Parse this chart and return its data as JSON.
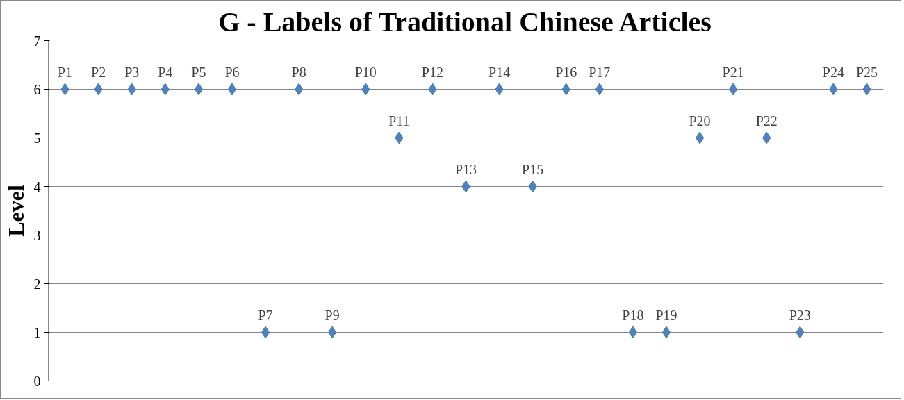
{
  "chart_data": {
    "type": "scatter",
    "title": "G - Labels of Traditional Chinese Articles",
    "ylabel": "Level",
    "categories": [
      null,
      null,
      null,
      null,
      null,
      null,
      null,
      null,
      null,
      null,
      null,
      null,
      null,
      null,
      null,
      null,
      null,
      null,
      null,
      null,
      null,
      null,
      null,
      null,
      null
    ],
    "series": [
      {
        "color": "#4f81bd",
        "values": [
          6,
          6,
          6,
          6,
          6,
          6,
          1,
          6,
          1,
          6,
          5,
          6,
          4,
          6,
          4,
          6,
          6,
          1,
          1,
          5,
          6,
          5,
          1,
          6,
          6
        ],
        "value_labels": [
          "P1",
          "P2",
          "P3",
          "P4",
          "P5",
          "P6",
          "P7",
          "P8",
          "P9",
          "P10",
          "P11",
          "P12",
          "P13",
          "P14",
          "P15",
          "P16",
          "P17",
          "P18",
          "P19",
          "P20",
          "P21",
          "P22",
          "P23",
          "P24",
          "P25"
        ]
      }
    ],
    "ylim": [
      0,
      7
    ],
    "yticks": [
      0,
      1,
      2,
      3,
      4,
      5,
      6,
      7
    ],
    "grid": "y",
    "tick_labels": "y",
    "marker": "diamond"
  }
}
